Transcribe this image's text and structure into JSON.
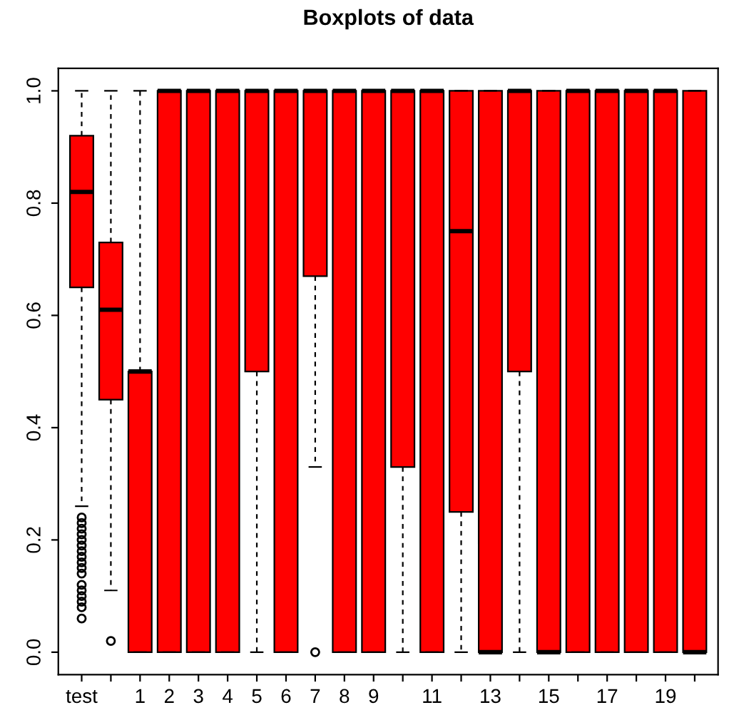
{
  "chart_data": {
    "type": "box",
    "title": "Boxplots of data",
    "categories": [
      "test",
      null,
      "1",
      "2",
      "3",
      "4",
      "5",
      "6",
      "7",
      "8",
      "9",
      null,
      "11",
      null,
      "13",
      null,
      "15",
      null,
      "17",
      null,
      "19",
      null
    ],
    "color": "#ff0000",
    "boxes": [
      {
        "low": 0.26,
        "q1": 0.65,
        "median": 0.82,
        "q3": 0.92,
        "high": 1,
        "outliers": [
          0.24,
          0.23,
          0.22,
          0.21,
          0.2,
          0.19,
          0.18,
          0.17,
          0.16,
          0.15,
          0.14,
          0.12,
          0.11,
          0.1,
          0.09,
          0.08,
          0.06
        ]
      },
      {
        "low": 0.11,
        "q1": 0.45,
        "median": 0.61,
        "q3": 0.73,
        "high": 1,
        "outliers": [
          0.02
        ]
      },
      {
        "low": 0,
        "q1": 0,
        "median": 0.5,
        "q3": 0.5,
        "high": 1
      },
      {
        "low": 0,
        "q1": 0,
        "median": 1,
        "q3": 1,
        "high": 1
      },
      {
        "low": 0,
        "q1": 0,
        "median": 1,
        "q3": 1,
        "high": 1
      },
      {
        "low": 0,
        "q1": 0,
        "median": 1,
        "q3": 1,
        "high": 1
      },
      {
        "low": 0,
        "q1": 0.5,
        "median": 1,
        "q3": 1,
        "high": 1
      },
      {
        "low": 0,
        "q1": 0,
        "median": 1,
        "q3": 1,
        "high": 1
      },
      {
        "low": 0.33,
        "q1": 0.67,
        "median": 1,
        "q3": 1,
        "high": 1,
        "outliers": [
          0
        ]
      },
      {
        "low": 0,
        "q1": 0,
        "median": 1,
        "q3": 1,
        "high": 1
      },
      {
        "low": 0,
        "q1": 0,
        "median": 1,
        "q3": 1,
        "high": 1
      },
      {
        "low": 0,
        "q1": 0.33,
        "median": 1,
        "q3": 1,
        "high": 1
      },
      {
        "low": 0,
        "q1": 0,
        "median": 1,
        "q3": 1,
        "high": 1
      },
      {
        "low": 0,
        "q1": 0.25,
        "median": 0.75,
        "q3": 1,
        "high": 1
      },
      {
        "low": 0,
        "q1": 0,
        "median": 0,
        "q3": 1,
        "high": 1
      },
      {
        "low": 0,
        "q1": 0.5,
        "median": 1,
        "q3": 1,
        "high": 1
      },
      {
        "low": 0,
        "q1": 0,
        "median": 0,
        "q3": 1,
        "high": 1
      },
      {
        "low": 0,
        "q1": 0,
        "median": 1,
        "q3": 1,
        "high": 1
      },
      {
        "low": 0,
        "q1": 0,
        "median": 1,
        "q3": 1,
        "high": 1
      },
      {
        "low": 0,
        "q1": 0,
        "median": 1,
        "q3": 1,
        "high": 1
      },
      {
        "low": 0,
        "q1": 0,
        "median": 1,
        "q3": 1,
        "high": 1
      },
      {
        "low": 0,
        "q1": 0,
        "median": 0,
        "q3": 1,
        "high": 1
      }
    ],
    "ylim": [
      -0.04,
      1.04
    ],
    "yticks": [
      {
        "value": 0,
        "label": "0.0"
      },
      {
        "value": 0.2,
        "label": "0.2"
      },
      {
        "value": 0.4,
        "label": "0.4"
      },
      {
        "value": 0.6,
        "label": "0.6"
      },
      {
        "value": 0.8,
        "label": "0.8"
      },
      {
        "value": 1,
        "label": "1.0"
      }
    ]
  }
}
